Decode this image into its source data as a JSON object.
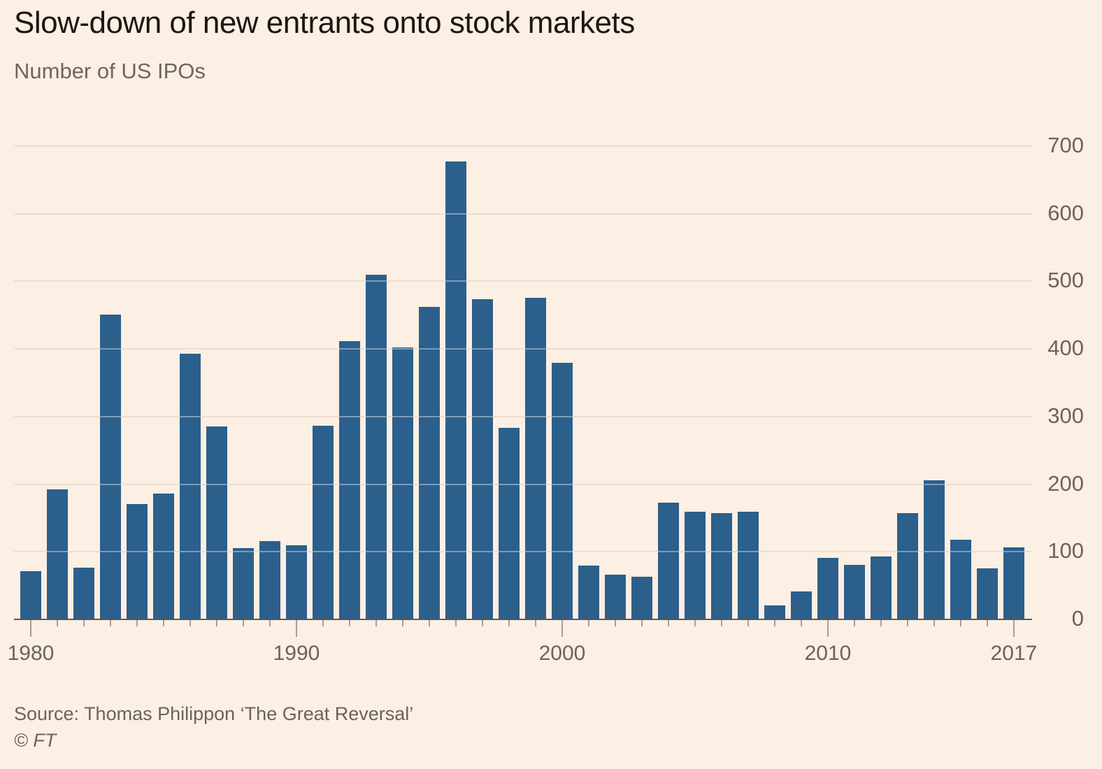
{
  "header": {
    "title": "Slow-down of new entrants onto stock markets",
    "subtitle": "Number of US IPOs"
  },
  "footer": {
    "source": "Source: Thomas Philippon ‘The Great Reversal’",
    "copyright": "© FT"
  },
  "chart_data": {
    "type": "bar",
    "title": "Slow-down of new entrants onto stock markets",
    "subtitle": "Number of US IPOs",
    "xlabel": "",
    "ylabel": "Number of US IPOs",
    "categories": [
      1980,
      1981,
      1982,
      1983,
      1984,
      1985,
      1986,
      1987,
      1988,
      1989,
      1990,
      1991,
      1992,
      1993,
      1994,
      1995,
      1996,
      1997,
      1998,
      1999,
      2000,
      2001,
      2002,
      2003,
      2004,
      2005,
      2006,
      2007,
      2008,
      2009,
      2010,
      2011,
      2012,
      2013,
      2014,
      2015,
      2016,
      2017
    ],
    "values": [
      71,
      192,
      77,
      451,
      171,
      186,
      393,
      285,
      105,
      116,
      110,
      286,
      412,
      510,
      402,
      462,
      677,
      474,
      283,
      476,
      380,
      80,
      66,
      63,
      173,
      159,
      157,
      159,
      21,
      41,
      91,
      81,
      93,
      157,
      206,
      118,
      75,
      107
    ],
    "ylim": [
      0,
      700
    ],
    "yticks": [
      0,
      100,
      200,
      300,
      400,
      500,
      600,
      700
    ],
    "ytick_side": "right",
    "xtick_label_years": [
      1980,
      1990,
      2000,
      2010,
      2017
    ],
    "grid": "horizontal",
    "legend": "none",
    "bar_color": "#2b5f8c",
    "background_color": "#fcefe3",
    "gridline_color": "#ecdfd2",
    "axis_line_color": "#5e5853",
    "tick_color": "#a89e94",
    "label_color": "#6b635d"
  }
}
